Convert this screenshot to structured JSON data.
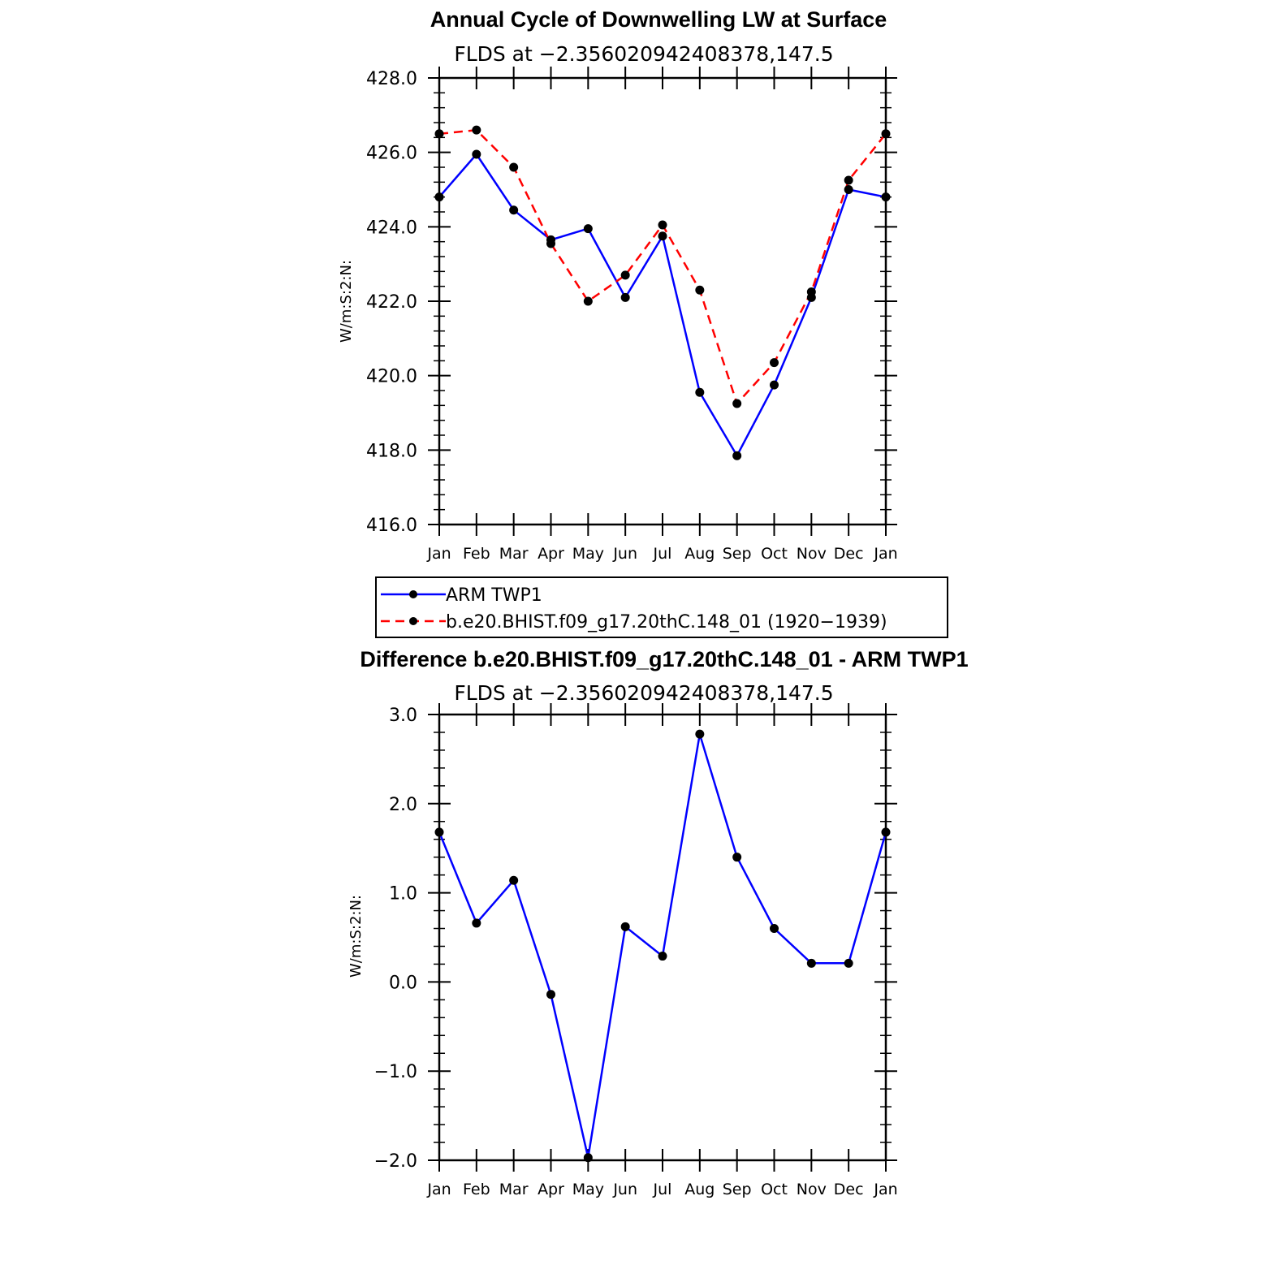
{
  "chart_data": [
    {
      "type": "line",
      "title": "Annual Cycle of Downwelling LW at Surface",
      "subtitle": "FLDS at −2.356020942408378,147.5",
      "ylabel": "W/m:S:2:N:",
      "xlabel": "",
      "categories": [
        "Jan",
        "Feb",
        "Mar",
        "Apr",
        "May",
        "Jun",
        "Jul",
        "Aug",
        "Sep",
        "Oct",
        "Nov",
        "Dec",
        "Jan"
      ],
      "ylim": [
        416.0,
        428.0
      ],
      "yticks": [
        "416.0",
        "418.0",
        "420.0",
        "422.0",
        "424.0",
        "426.0",
        "428.0"
      ],
      "yticks_values": [
        416,
        418,
        420,
        422,
        424,
        426,
        428
      ],
      "series": [
        {
          "name": "ARM TWP1",
          "color": "#0000ff",
          "dash": "solid",
          "values": [
            424.8,
            425.95,
            424.45,
            423.65,
            423.95,
            422.1,
            423.75,
            419.55,
            417.85,
            419.75,
            422.1,
            425.0,
            424.8
          ]
        },
        {
          "name": "b.e20.BHIST.f09_g17.20thC.148_01 (1920−1939)",
          "color": "#ff0000",
          "dash": "dashed",
          "values": [
            426.5,
            426.6,
            425.6,
            423.55,
            422.0,
            422.7,
            424.05,
            422.3,
            419.25,
            420.35,
            422.25,
            425.25,
            426.5
          ]
        }
      ],
      "legend": "below",
      "grid": false
    },
    {
      "type": "line",
      "title": "Difference b.e20.BHIST.f09_g17.20thC.148_01 - ARM TWP1",
      "subtitle": "FLDS at −2.356020942408378,147.5",
      "ylabel": "W/m:S:2:N:",
      "xlabel": "",
      "categories": [
        "Jan",
        "Feb",
        "Mar",
        "Apr",
        "May",
        "Jun",
        "Jul",
        "Aug",
        "Sep",
        "Oct",
        "Nov",
        "Dec",
        "Jan"
      ],
      "ylim": [
        -2.0,
        3.0
      ],
      "yticks": [
        "−2.0",
        "−1.0",
        "0.0",
        "1.0",
        "2.0",
        "3.0"
      ],
      "yticks_values": [
        -2,
        -1,
        0,
        1,
        2,
        3
      ],
      "series": [
        {
          "color": "#0000ff",
          "dash": "solid",
          "values": [
            1.68,
            0.66,
            1.14,
            -0.14,
            -1.97,
            0.62,
            0.29,
            2.78,
            1.4,
            0.6,
            0.21,
            0.21,
            1.68
          ]
        }
      ],
      "grid": false
    }
  ]
}
